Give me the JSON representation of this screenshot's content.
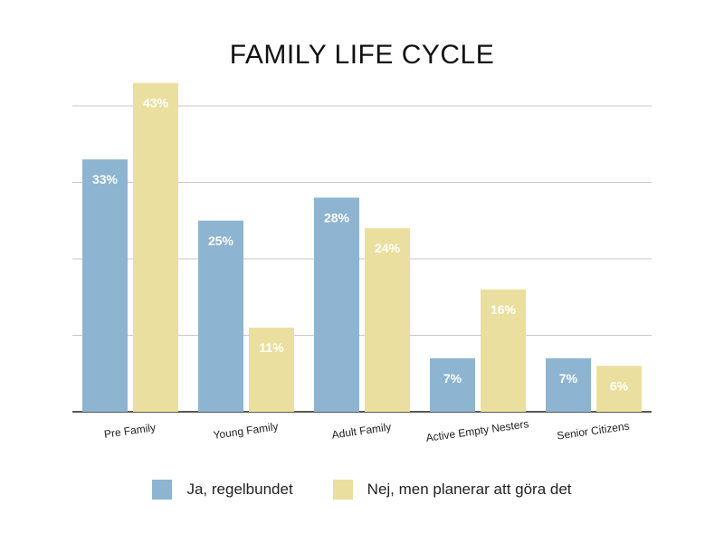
{
  "chart_data": {
    "type": "bar",
    "title": "FAMILY LIFE CYCLE",
    "xlabel": "",
    "ylabel": "",
    "categories": [
      "Pre Family",
      "Young Family",
      "Adult Family",
      "Active Empty Nesters",
      "Senior Citizens"
    ],
    "series": [
      {
        "name": "Ja, regelbundet",
        "values": [
          33,
          25,
          28,
          7,
          7
        ],
        "labels": [
          "33%",
          "25%",
          "28%",
          "7%",
          "7%"
        ],
        "color": "#8db5d2"
      },
      {
        "name": "Nej, men planerar att göra det",
        "values": [
          43,
          11,
          24,
          16,
          6
        ],
        "labels": [
          "43%",
          "11%",
          "24%",
          "16%",
          "6%"
        ],
        "color": "#ebdf9f"
      }
    ],
    "ylim": [
      0,
      40
    ],
    "y_gridlines": [
      0,
      10,
      20,
      30,
      40
    ],
    "y_tick_labels_shown": false,
    "grid": true,
    "legend_position": "bottom",
    "data_label_color": "#ffffff"
  }
}
